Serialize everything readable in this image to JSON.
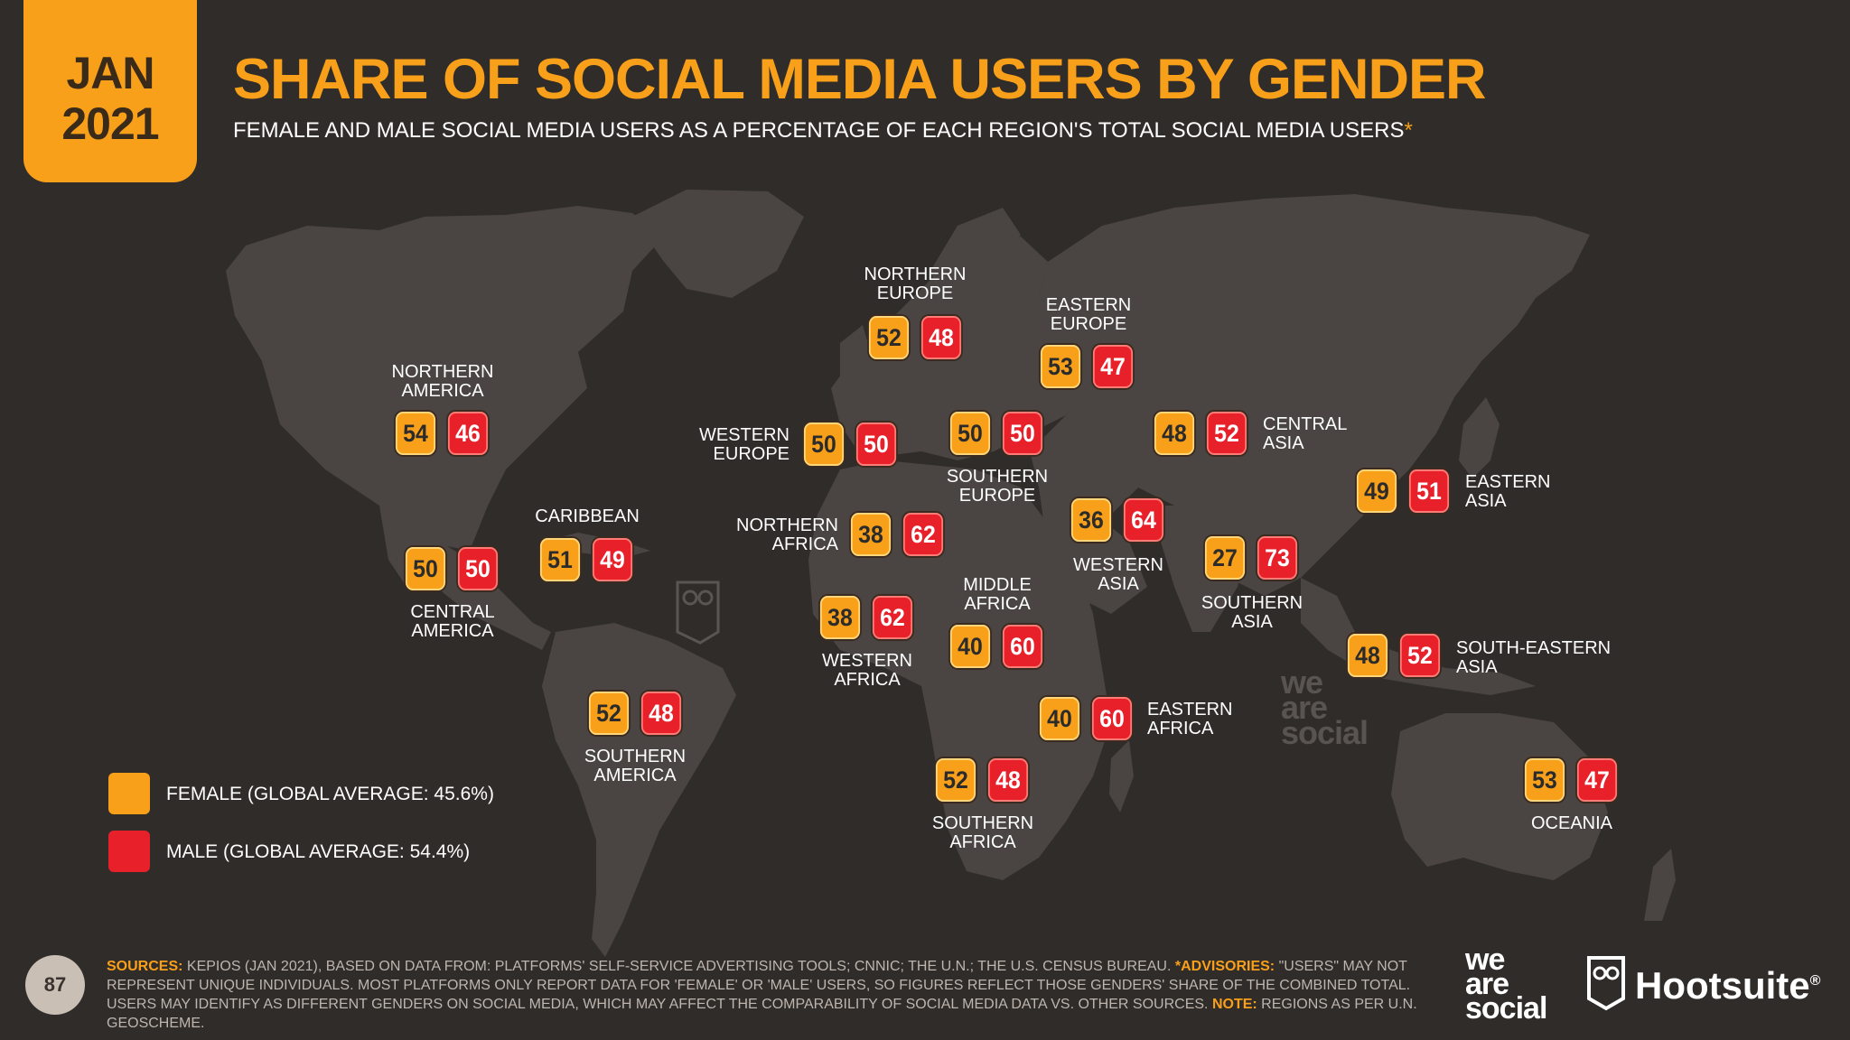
{
  "header": {
    "month": "JAN",
    "year": "2021",
    "title": "SHARE OF SOCIAL MEDIA USERS BY GENDER",
    "subtitle": "FEMALE AND MALE SOCIAL MEDIA USERS AS A PERCENTAGE OF EACH REGION'S TOTAL SOCIAL MEDIA USERS",
    "subtitle_mark": "*"
  },
  "colors": {
    "female": "#f9a01b",
    "male": "#e8202a",
    "background": "#302c2a",
    "map": "#4a4543"
  },
  "chart_data": {
    "type": "table",
    "title": "SHARE OF SOCIAL MEDIA USERS BY GENDER",
    "unit": "% of region's social media users",
    "columns": [
      "FEMALE",
      "MALE"
    ],
    "regions": [
      {
        "name": "NORTHERN AMERICA",
        "female": 54,
        "male": 46
      },
      {
        "name": "CENTRAL AMERICA",
        "female": 50,
        "male": 50
      },
      {
        "name": "CARIBBEAN",
        "female": 51,
        "male": 49
      },
      {
        "name": "SOUTHERN AMERICA",
        "female": 52,
        "male": 48
      },
      {
        "name": "NORTHERN EUROPE",
        "female": 52,
        "male": 48
      },
      {
        "name": "WESTERN EUROPE",
        "female": 50,
        "male": 50
      },
      {
        "name": "SOUTHERN EUROPE",
        "female": 50,
        "male": 50
      },
      {
        "name": "EASTERN EUROPE",
        "female": 53,
        "male": 47
      },
      {
        "name": "NORTHERN AFRICA",
        "female": 38,
        "male": 62
      },
      {
        "name": "WESTERN AFRICA",
        "female": 38,
        "male": 62
      },
      {
        "name": "MIDDLE AFRICA",
        "female": 40,
        "male": 60
      },
      {
        "name": "EASTERN AFRICA",
        "female": 40,
        "male": 60
      },
      {
        "name": "SOUTHERN AFRICA",
        "female": 52,
        "male": 48
      },
      {
        "name": "WESTERN ASIA",
        "female": 36,
        "male": 64
      },
      {
        "name": "CENTRAL ASIA",
        "female": 48,
        "male": 52
      },
      {
        "name": "SOUTHERN ASIA",
        "female": 27,
        "male": 73
      },
      {
        "name": "EASTERN ASIA",
        "female": 49,
        "male": 51
      },
      {
        "name": "SOUTH-EASTERN ASIA",
        "female": 48,
        "male": 52
      },
      {
        "name": "OCEANIA",
        "female": 53,
        "male": 47
      }
    ],
    "legend": [
      {
        "label": "FEMALE (GLOBAL AVERAGE: 45.6%)"
      },
      {
        "label": "MALE (GLOBAL AVERAGE: 54.4%)"
      }
    ]
  },
  "footer": {
    "page_number": "87",
    "sources_label": "SOURCES:",
    "sources_text": "KEPIOS (JAN 2021), BASED ON DATA FROM: PLATFORMS' SELF-SERVICE ADVERTISING TOOLS; CNNIC; THE U.N.; THE U.S. CENSUS BUREAU.",
    "advisories_label": "*ADVISORIES:",
    "advisories_text": "\"USERS\" MAY NOT REPRESENT UNIQUE INDIVIDUALS. MOST PLATFORMS ONLY REPORT DATA FOR 'FEMALE' OR 'MALE' USERS, SO FIGURES REFLECT THOSE GENDERS' SHARE OF THE COMBINED TOTAL. USERS MAY IDENTIFY AS DIFFERENT GENDERS ON SOCIAL MEDIA, WHICH MAY AFFECT THE COMPARABILITY OF SOCIAL MEDIA DATA vs. OTHER SOURCES.",
    "note_label": "NOTE:",
    "note_text": "REGIONS AS PER U.N. GEOSCHEME."
  },
  "brands": {
    "we": "we",
    "are": "are",
    "social": "social",
    "hootsuite": "Hootsuite",
    "registered": "®"
  }
}
